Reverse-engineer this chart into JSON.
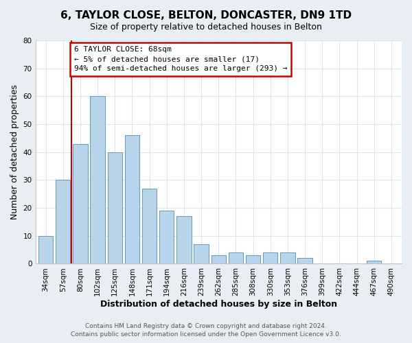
{
  "title": "6, TAYLOR CLOSE, BELTON, DONCASTER, DN9 1TD",
  "subtitle": "Size of property relative to detached houses in Belton",
  "xlabel": "Distribution of detached houses by size in Belton",
  "ylabel": "Number of detached properties",
  "bar_labels": [
    "34sqm",
    "57sqm",
    "80sqm",
    "102sqm",
    "125sqm",
    "148sqm",
    "171sqm",
    "194sqm",
    "216sqm",
    "239sqm",
    "262sqm",
    "285sqm",
    "308sqm",
    "330sqm",
    "353sqm",
    "376sqm",
    "399sqm",
    "422sqm",
    "444sqm",
    "467sqm",
    "490sqm"
  ],
  "bar_values": [
    10,
    30,
    43,
    60,
    40,
    46,
    27,
    19,
    17,
    7,
    3,
    4,
    3,
    4,
    4,
    2,
    0,
    0,
    0,
    1,
    0
  ],
  "bar_color": "#b8d4ea",
  "bar_edge_color": "#6699bb",
  "highlight_color": "#cc0000",
  "annotation_title": "6 TAYLOR CLOSE: 68sqm",
  "annotation_line1": "← 5% of detached houses are smaller (17)",
  "annotation_line2": "94% of semi-detached houses are larger (293) →",
  "annotation_box_color": "#ffffff",
  "annotation_box_edge": "#cc0000",
  "ylim": [
    0,
    80
  ],
  "yticks": [
    0,
    10,
    20,
    30,
    40,
    50,
    60,
    70,
    80
  ],
  "footer_line1": "Contains HM Land Registry data © Crown copyright and database right 2024.",
  "footer_line2": "Contains public sector information licensed under the Open Government Licence v3.0.",
  "figure_bg": "#e8eef4",
  "plot_bg": "#ffffff",
  "grid_color": "#dde4ec",
  "title_fontsize": 11,
  "subtitle_fontsize": 9,
  "axis_label_fontsize": 9,
  "tick_fontsize": 7.5,
  "annotation_fontsize": 8,
  "footer_fontsize": 6.5
}
